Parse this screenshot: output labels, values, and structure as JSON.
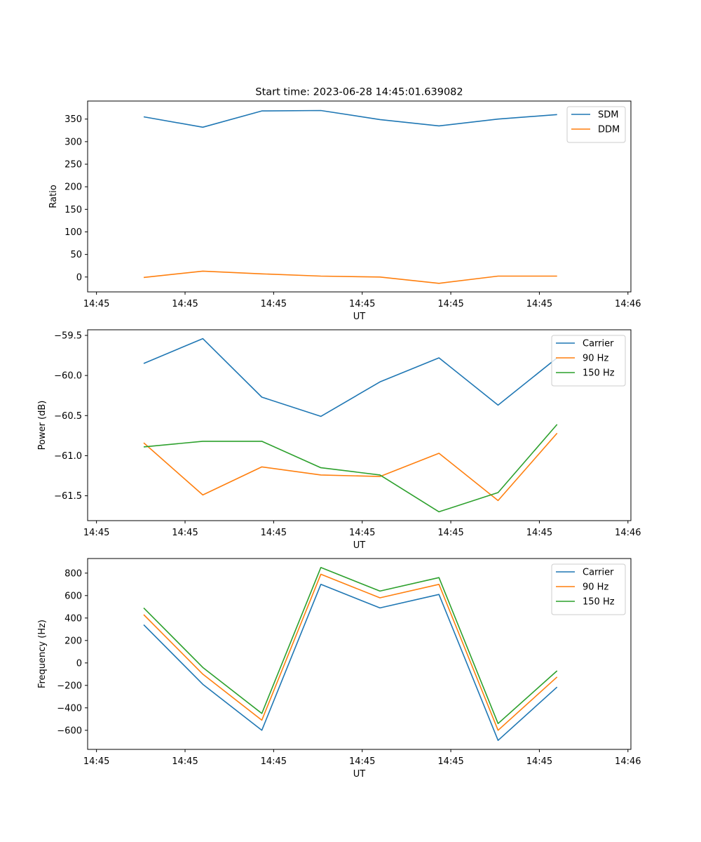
{
  "figure_title": "Start time: 2023-06-28 14:45:01.639082",
  "colors": {
    "blue": "#1f77b4",
    "orange": "#ff7f0e",
    "green": "#2ca02c"
  },
  "chart_data": [
    {
      "type": "line",
      "title": "Start time: 2023-06-28 14:45:01.639082",
      "xlabel": "UT",
      "ylabel": "Ratio",
      "x": [
        1.6,
        3.6,
        5.6,
        7.6,
        9.6,
        11.6,
        13.6,
        15.6
      ],
      "xlim": [
        -0.3,
        18.1
      ],
      "x_ticks": [
        0,
        3,
        6,
        9,
        12,
        15,
        18
      ],
      "x_tick_labels": [
        "14:45",
        "14:45",
        "14:45",
        "14:45",
        "14:45",
        "14:45",
        "14:46"
      ],
      "ylim": [
        -33,
        390
      ],
      "y_ticks": [
        0,
        50,
        100,
        150,
        200,
        250,
        300,
        350
      ],
      "y_tick_labels": [
        "0",
        "50",
        "100",
        "150",
        "200",
        "250",
        "300",
        "350"
      ],
      "legend": "top-right",
      "grid": false,
      "series": [
        {
          "name": "SDM",
          "color": "#1f77b4",
          "values": [
            355,
            332,
            368,
            369,
            349,
            335,
            350,
            360
          ]
        },
        {
          "name": "DDM",
          "color": "#ff7f0e",
          "values": [
            -1,
            13,
            7,
            2,
            0,
            -14,
            2,
            2
          ]
        }
      ]
    },
    {
      "type": "line",
      "title": "",
      "xlabel": "UT",
      "ylabel": "Power (dB)",
      "x": [
        1.6,
        3.6,
        5.6,
        7.6,
        9.6,
        11.6,
        13.6,
        15.6
      ],
      "xlim": [
        -0.3,
        18.1
      ],
      "x_ticks": [
        0,
        3,
        6,
        9,
        12,
        15,
        18
      ],
      "x_tick_labels": [
        "14:45",
        "14:45",
        "14:45",
        "14:45",
        "14:45",
        "14:45",
        "14:46"
      ],
      "ylim": [
        -61.81,
        -59.43
      ],
      "y_ticks": [
        -59.5,
        -60.0,
        -60.5,
        -61.0,
        -61.5
      ],
      "y_tick_labels": [
        "−59.5",
        "−60.0",
        "−60.5",
        "−61.0",
        "−61.5"
      ],
      "legend": "top-right",
      "grid": false,
      "series": [
        {
          "name": "Carrier",
          "color": "#1f77b4",
          "values": [
            -59.85,
            -59.54,
            -60.27,
            -60.51,
            -60.08,
            -59.78,
            -60.37,
            -59.78
          ]
        },
        {
          "name": "90 Hz",
          "color": "#ff7f0e",
          "values": [
            -60.84,
            -61.49,
            -61.14,
            -61.24,
            -61.26,
            -60.97,
            -61.56,
            -60.72
          ]
        },
        {
          "name": "150 Hz",
          "color": "#2ca02c",
          "values": [
            -60.89,
            -60.82,
            -60.82,
            -61.15,
            -61.24,
            -61.7,
            -61.46,
            -60.61
          ]
        }
      ]
    },
    {
      "type": "line",
      "title": "",
      "xlabel": "UT",
      "ylabel": "Frequency (Hz)",
      "x": [
        1.6,
        3.6,
        5.6,
        7.6,
        9.6,
        11.6,
        13.6,
        15.6
      ],
      "xlim": [
        -0.3,
        18.1
      ],
      "x_ticks": [
        0,
        3,
        6,
        9,
        12,
        15,
        18
      ],
      "x_tick_labels": [
        "14:45",
        "14:45",
        "14:45",
        "14:45",
        "14:45",
        "14:45",
        "14:46"
      ],
      "ylim": [
        -770,
        930
      ],
      "y_ticks": [
        800,
        600,
        400,
        200,
        0,
        -200,
        -400,
        -600
      ],
      "y_tick_labels": [
        "800",
        "600",
        "400",
        "200",
        "0",
        "−200",
        "−400",
        "−600"
      ],
      "legend": "top-right",
      "grid": false,
      "series": [
        {
          "name": "Carrier",
          "color": "#1f77b4",
          "values": [
            340,
            -190,
            -600,
            700,
            490,
            610,
            -690,
            -215
          ]
        },
        {
          "name": "90 Hz",
          "color": "#ff7f0e",
          "values": [
            430,
            -100,
            -510,
            790,
            580,
            700,
            -600,
            -125
          ]
        },
        {
          "name": "150 Hz",
          "color": "#2ca02c",
          "values": [
            490,
            -40,
            -450,
            850,
            640,
            760,
            -540,
            -70
          ]
        }
      ]
    }
  ]
}
